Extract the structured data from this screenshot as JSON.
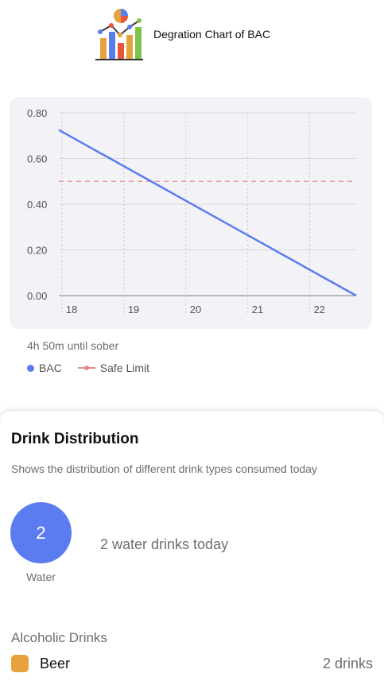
{
  "header": {
    "title": "Degration Chart of BAC",
    "logo_icon": "chart-logo-icon"
  },
  "chart_data": {
    "type": "line",
    "x_ticks": [
      "18",
      "19",
      "20",
      "21",
      "22"
    ],
    "y_ticks": [
      "0.80",
      "0.60",
      "0.40",
      "0.20",
      "0.00"
    ],
    "ylim": [
      0,
      0.8
    ],
    "xlim": [
      17.95,
      22.75
    ],
    "series": [
      {
        "name": "BAC",
        "color": "#5b7cf0",
        "x": [
          17.95,
          22.75
        ],
        "y": [
          0.725,
          0.0
        ]
      }
    ],
    "reference_lines": [
      {
        "name": "Safe Limit",
        "y": 0.5,
        "color": "#e08b8b",
        "style": "dashed"
      }
    ],
    "grid": true
  },
  "status": {
    "sober_text": "4h 50m until sober"
  },
  "legend": {
    "bac_label": "BAC",
    "safe_label": "Safe Limit"
  },
  "distribution": {
    "title": "Drink Distribution",
    "subtitle": "Shows the distribution of different drink types consumed today",
    "water": {
      "count": "2",
      "label": "Water",
      "summary": "2 water drinks today"
    },
    "alcoholic_title": "Alcoholic Drinks",
    "alcoholic": [
      {
        "name": "Beer",
        "count": "2 drinks",
        "color": "#e6a23c"
      }
    ]
  }
}
